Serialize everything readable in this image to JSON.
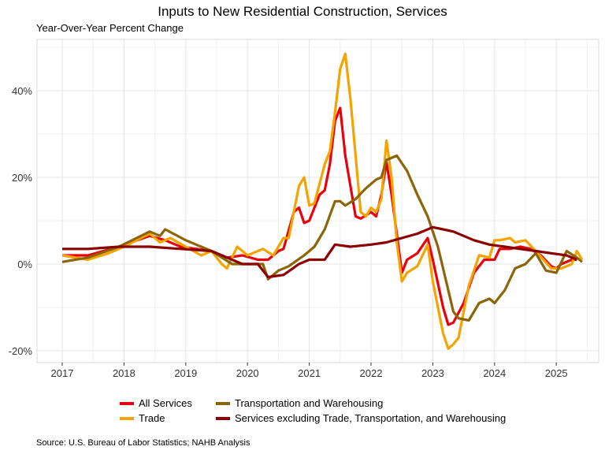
{
  "chart_data": {
    "type": "line",
    "title": "Inputs to New Residential Construction, Services",
    "subtitle": "Year-Over-Year Percent Change",
    "source": "Source: U.S. Bureau of Labor Statistics; NAHB Analysis",
    "xlabel": "",
    "ylabel": "",
    "x_ticks": [
      "2017",
      "2018",
      "2019",
      "2020",
      "2021",
      "2022",
      "2023",
      "2024",
      "2025"
    ],
    "y_ticks": [
      {
        "value": -20,
        "label": "-20%"
      },
      {
        "value": 0,
        "label": "0%"
      },
      {
        "value": 20,
        "label": "20%"
      },
      {
        "value": 40,
        "label": "40%"
      }
    ],
    "ylim": [
      -23,
      52
    ],
    "xlim": [
      "2016-08",
      "2025-12"
    ],
    "grid": true,
    "legend_placement": "bottom",
    "series": [
      {
        "name": "All Services",
        "color": "#e8000b",
        "points": [
          [
            "2017-01",
            2
          ],
          [
            "2017-06",
            2
          ],
          [
            "2017-12",
            4
          ],
          [
            "2018-06",
            6.5
          ],
          [
            "2018-09",
            5.5
          ],
          [
            "2018-12",
            4
          ],
          [
            "2019-06",
            3
          ],
          [
            "2019-09",
            1.5
          ],
          [
            "2019-12",
            2
          ],
          [
            "2020-03",
            1
          ],
          [
            "2020-05",
            1
          ],
          [
            "2020-07",
            3
          ],
          [
            "2020-08",
            3.5
          ],
          [
            "2020-10",
            12
          ],
          [
            "2020-11",
            13
          ],
          [
            "2020-12",
            9.5
          ],
          [
            "2021-01",
            10
          ],
          [
            "2021-03",
            16
          ],
          [
            "2021-04",
            17
          ],
          [
            "2021-05",
            23
          ],
          [
            "2021-06",
            33
          ],
          [
            "2021-07",
            36
          ],
          [
            "2021-08",
            25
          ],
          [
            "2021-10",
            11
          ],
          [
            "2021-11",
            10.5
          ],
          [
            "2022-01",
            12
          ],
          [
            "2022-02",
            11
          ],
          [
            "2022-03",
            16
          ],
          [
            "2022-04",
            23.5
          ],
          [
            "2022-05",
            16
          ],
          [
            "2022-07",
            -2
          ],
          [
            "2022-08",
            1
          ],
          [
            "2022-10",
            2.5
          ],
          [
            "2022-12",
            6
          ],
          [
            "2023-01",
            1
          ],
          [
            "2023-03",
            -10
          ],
          [
            "2023-04",
            -14
          ],
          [
            "2023-05",
            -13.5
          ],
          [
            "2023-07",
            -9
          ],
          [
            "2023-09",
            -2
          ],
          [
            "2023-11",
            1
          ],
          [
            "2024-01",
            1
          ],
          [
            "2024-02",
            3.5
          ],
          [
            "2024-04",
            3.5
          ],
          [
            "2024-06",
            4
          ],
          [
            "2024-08",
            3.5
          ],
          [
            "2024-10",
            2
          ],
          [
            "2024-12",
            -0.5
          ],
          [
            "2025-01",
            -1
          ],
          [
            "2025-02",
            0
          ],
          [
            "2025-04",
            1
          ],
          [
            "2025-05",
            1
          ]
        ]
      },
      {
        "name": "Trade",
        "color": "#f5a300",
        "points": [
          [
            "2017-01",
            2
          ],
          [
            "2017-06",
            1
          ],
          [
            "2017-10",
            2.5
          ],
          [
            "2018-01",
            4
          ],
          [
            "2018-06",
            7
          ],
          [
            "2018-08",
            5
          ],
          [
            "2018-10",
            6
          ],
          [
            "2019-01",
            4
          ],
          [
            "2019-04",
            2
          ],
          [
            "2019-06",
            3
          ],
          [
            "2019-08",
            0
          ],
          [
            "2019-09",
            -1
          ],
          [
            "2019-11",
            4
          ],
          [
            "2020-01",
            2
          ],
          [
            "2020-04",
            3.5
          ],
          [
            "2020-06",
            2
          ],
          [
            "2020-08",
            6
          ],
          [
            "2020-09",
            6
          ],
          [
            "2020-11",
            18
          ],
          [
            "2020-12",
            20
          ],
          [
            "2021-01",
            13.5
          ],
          [
            "2021-02",
            14
          ],
          [
            "2021-04",
            23
          ],
          [
            "2021-05",
            26
          ],
          [
            "2021-06",
            35
          ],
          [
            "2021-07",
            45
          ],
          [
            "2021-08",
            48.5
          ],
          [
            "2021-09",
            38
          ],
          [
            "2021-11",
            12
          ],
          [
            "2021-12",
            11
          ],
          [
            "2022-01",
            13
          ],
          [
            "2022-02",
            12
          ],
          [
            "2022-03",
            15
          ],
          [
            "2022-04",
            28.5
          ],
          [
            "2022-05",
            20
          ],
          [
            "2022-06",
            5
          ],
          [
            "2022-07",
            -4
          ],
          [
            "2022-08",
            -2
          ],
          [
            "2022-10",
            -0.5
          ],
          [
            "2022-12",
            4.5
          ],
          [
            "2023-01",
            -4
          ],
          [
            "2023-03",
            -16
          ],
          [
            "2023-04",
            -19.5
          ],
          [
            "2023-05",
            -18.5
          ],
          [
            "2023-06",
            -17
          ],
          [
            "2023-08",
            -5
          ],
          [
            "2023-10",
            2
          ],
          [
            "2023-12",
            1.5
          ],
          [
            "2024-01",
            5.5
          ],
          [
            "2024-02",
            5.5
          ],
          [
            "2024-04",
            6
          ],
          [
            "2024-05",
            5
          ],
          [
            "2024-07",
            5.5
          ],
          [
            "2024-09",
            3
          ],
          [
            "2024-12",
            -1
          ],
          [
            "2025-02",
            -1
          ],
          [
            "2025-04",
            0
          ],
          [
            "2025-05",
            3
          ],
          [
            "2025-06",
            1
          ]
        ]
      },
      {
        "name": "Transportation and Warehousing",
        "color": "#8b6508",
        "points": [
          [
            "2017-01",
            0.5
          ],
          [
            "2017-06",
            1.5
          ],
          [
            "2017-12",
            4
          ],
          [
            "2018-06",
            7.5
          ],
          [
            "2018-08",
            6.5
          ],
          [
            "2018-09",
            8
          ],
          [
            "2019-01",
            5.5
          ],
          [
            "2019-04",
            4
          ],
          [
            "2019-06",
            3
          ],
          [
            "2019-10",
            0
          ],
          [
            "2020-01",
            0
          ],
          [
            "2020-04",
            0
          ],
          [
            "2020-05",
            -3.5
          ],
          [
            "2020-07",
            -1.5
          ],
          [
            "2020-09",
            -0.5
          ],
          [
            "2020-12",
            2
          ],
          [
            "2021-02",
            4
          ],
          [
            "2021-04",
            8
          ],
          [
            "2021-06",
            14.5
          ],
          [
            "2021-07",
            14.5
          ],
          [
            "2021-08",
            13.5
          ],
          [
            "2021-10",
            15
          ],
          [
            "2021-12",
            17.5
          ],
          [
            "2022-02",
            19.5
          ],
          [
            "2022-03",
            20
          ],
          [
            "2022-04",
            24
          ],
          [
            "2022-06",
            25
          ],
          [
            "2022-08",
            21.5
          ],
          [
            "2022-10",
            16
          ],
          [
            "2022-12",
            11
          ],
          [
            "2023-02",
            4
          ],
          [
            "2023-04",
            -6
          ],
          [
            "2023-05",
            -11
          ],
          [
            "2023-06",
            -12.5
          ],
          [
            "2023-08",
            -13
          ],
          [
            "2023-10",
            -9
          ],
          [
            "2023-12",
            -8
          ],
          [
            "2024-01",
            -9
          ],
          [
            "2024-03",
            -6
          ],
          [
            "2024-05",
            -1
          ],
          [
            "2024-07",
            0
          ],
          [
            "2024-09",
            2.5
          ],
          [
            "2024-11",
            -1.5
          ],
          [
            "2025-01",
            -2
          ],
          [
            "2025-03",
            3
          ],
          [
            "2025-05",
            1.5
          ],
          [
            "2025-06",
            0.5
          ]
        ]
      },
      {
        "name": "Services excluding Trade, Transportation, and Warehousing",
        "color": "#8b0000",
        "points": [
          [
            "2017-01",
            3.5
          ],
          [
            "2017-06",
            3.5
          ],
          [
            "2017-12",
            4
          ],
          [
            "2018-06",
            4
          ],
          [
            "2018-12",
            3.5
          ],
          [
            "2019-06",
            3
          ],
          [
            "2019-12",
            0
          ],
          [
            "2020-03",
            0
          ],
          [
            "2020-05",
            -3
          ],
          [
            "2020-08",
            -2.5
          ],
          [
            "2020-11",
            0
          ],
          [
            "2021-01",
            1
          ],
          [
            "2021-04",
            1
          ],
          [
            "2021-06",
            4.5
          ],
          [
            "2021-09",
            4
          ],
          [
            "2022-01",
            4.5
          ],
          [
            "2022-04",
            5
          ],
          [
            "2022-07",
            6
          ],
          [
            "2022-10",
            7
          ],
          [
            "2023-01",
            8.5
          ],
          [
            "2023-03",
            8
          ],
          [
            "2023-05",
            7.5
          ],
          [
            "2023-07",
            6.5
          ],
          [
            "2023-09",
            5.5
          ],
          [
            "2023-12",
            4.5
          ],
          [
            "2024-03",
            4
          ],
          [
            "2024-06",
            3.5
          ],
          [
            "2024-09",
            3
          ],
          [
            "2024-12",
            2.5
          ],
          [
            "2025-03",
            2
          ],
          [
            "2025-05",
            1
          ]
        ]
      }
    ]
  }
}
